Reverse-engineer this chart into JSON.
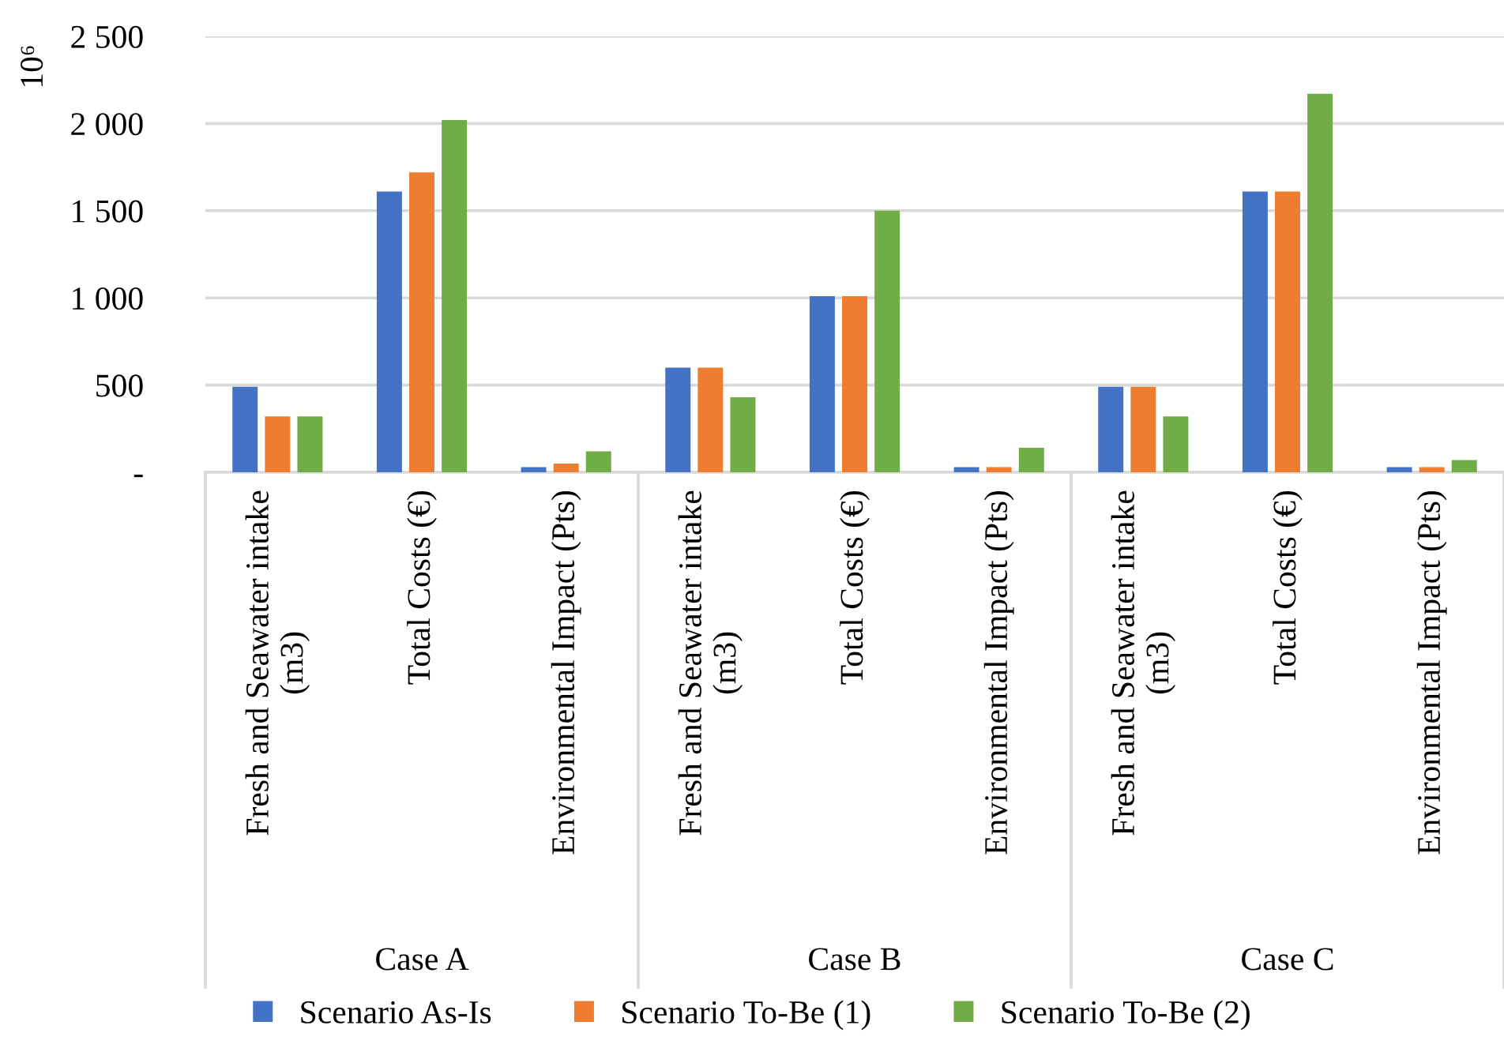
{
  "chart_data": {
    "type": "bar",
    "ylabel": "10⁶",
    "categories": [
      "Fresh and Seawater intake\n(m3)",
      "Total Costs (€)",
      "Environmental Impact (Pts)",
      "Fresh and Seawater intake\n(m3)",
      "Total Costs (€)",
      "Environmental Impact (Pts)",
      "Fresh and Seawater intake\n(m3)",
      "Total Costs (€)",
      "Environmental Impact (Pts)"
    ],
    "annotations": [
      "Case A",
      "Case B",
      "Case C"
    ],
    "series": [
      {
        "name": "Scenario As-Is",
        "color": "#4472c4",
        "values": [
          490,
          1610,
          30,
          600,
          1010,
          30,
          490,
          1610,
          30
        ]
      },
      {
        "name": "Scenario To-Be (1)",
        "color": "#ed7d31",
        "values": [
          320,
          1720,
          50,
          600,
          1010,
          30,
          490,
          1610,
          30
        ]
      },
      {
        "name": "Scenario To-Be (2)",
        "color": "#70ad47",
        "values": [
          320,
          2020,
          120,
          430,
          1500,
          140,
          320,
          2170,
          70
        ]
      }
    ],
    "ylim": [
      0,
      2500
    ],
    "yticks": [
      {
        "value": 0,
        "label": "-"
      },
      500,
      {
        "value": 1000,
        "label": "1 000"
      },
      {
        "value": 1500,
        "label": "1 500"
      },
      {
        "value": 2000,
        "label": "2 000"
      },
      {
        "value": 2500,
        "label": "2 500"
      }
    ],
    "grid": "y",
    "legend": "bottom"
  }
}
